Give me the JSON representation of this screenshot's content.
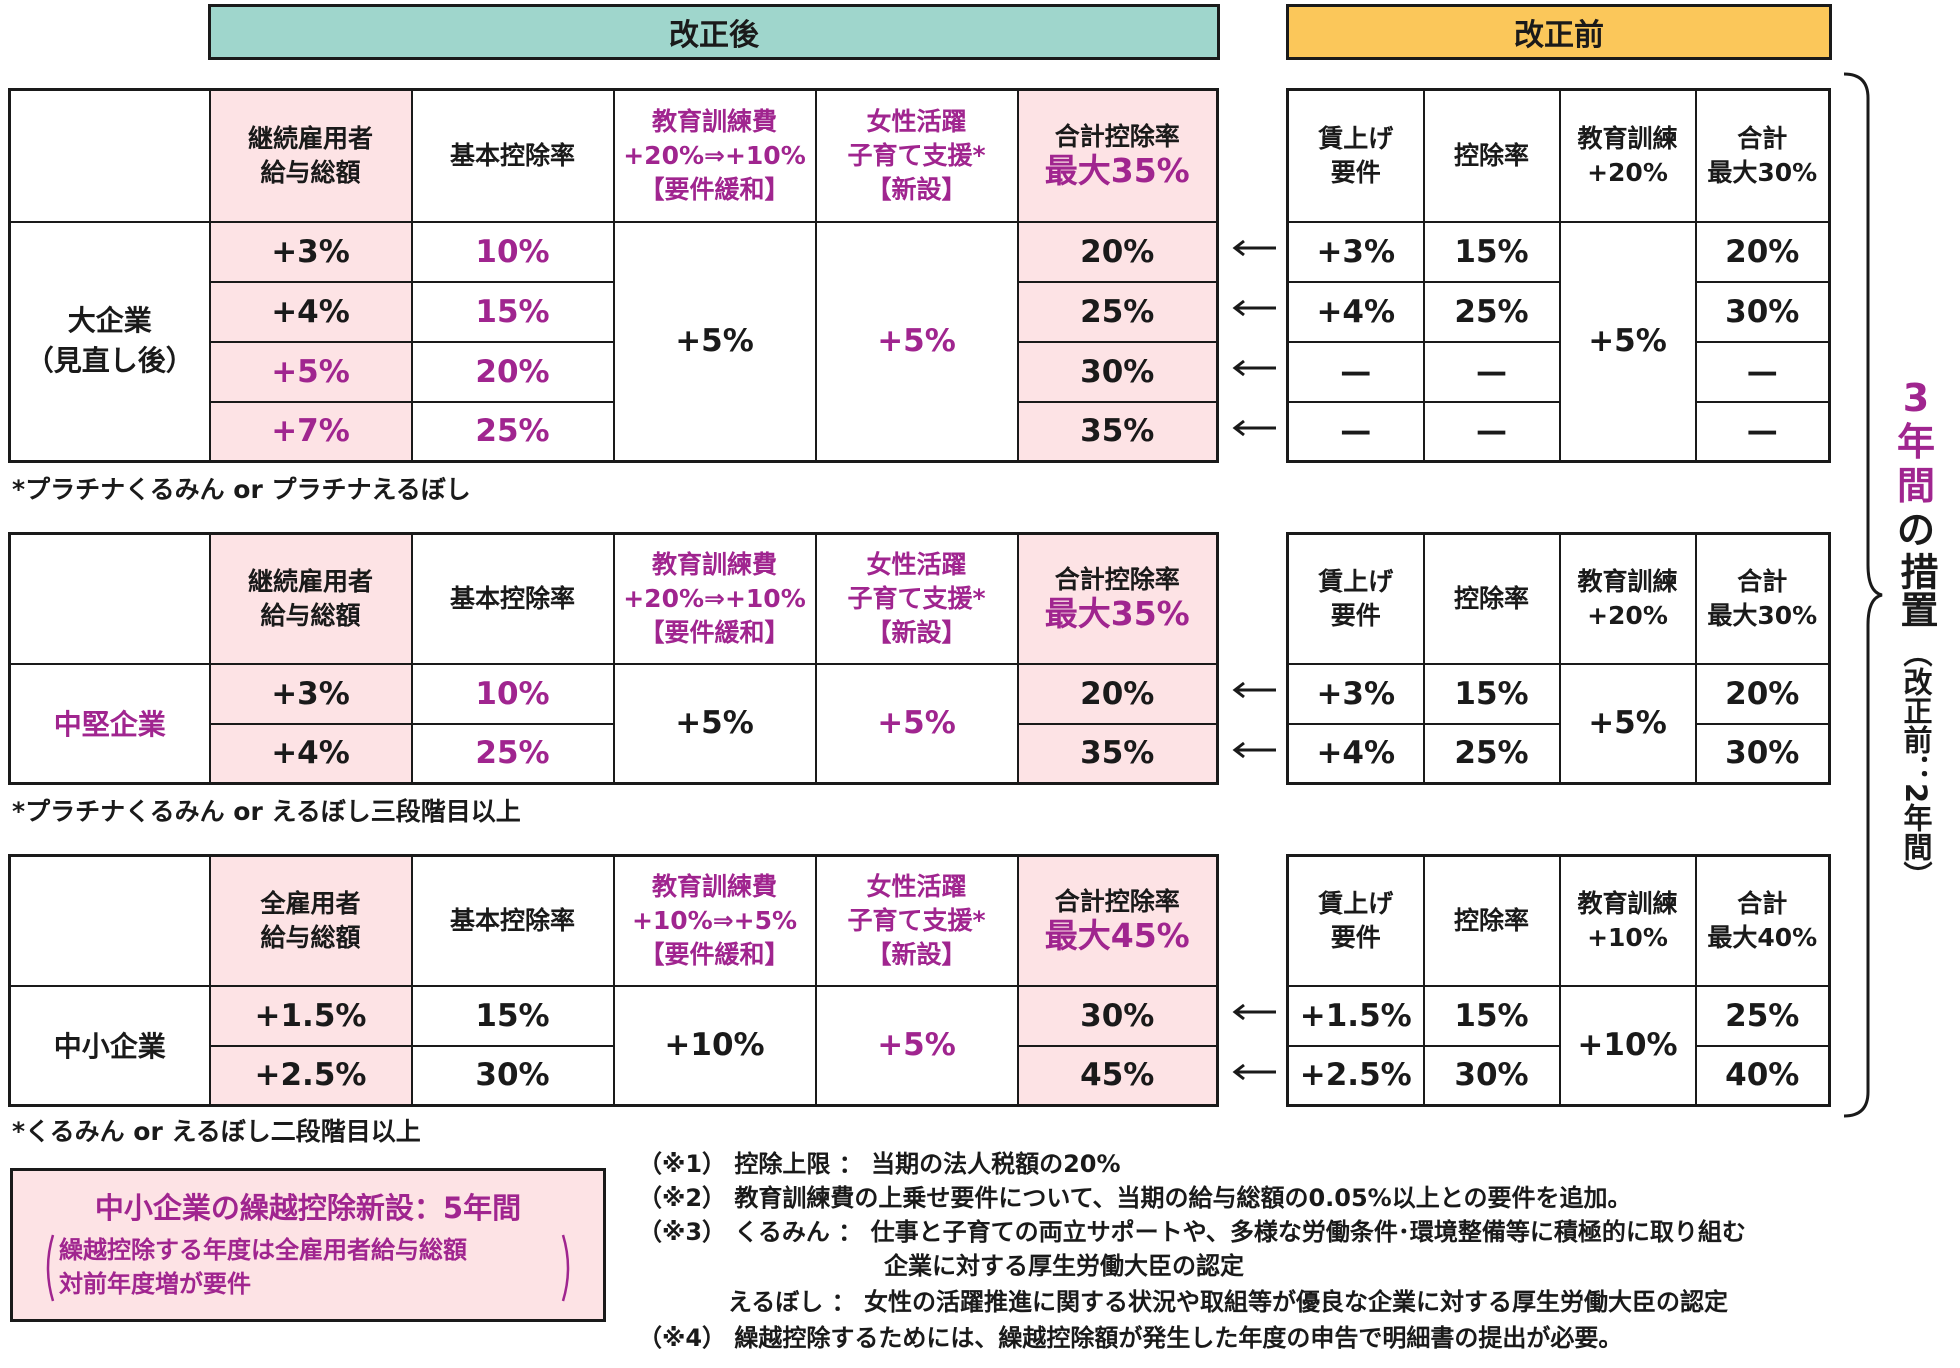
{
  "header": {
    "after": "改正後",
    "before": "改正前"
  },
  "colors": {
    "teal": "#9fd6cc",
    "yellow": "#fbc75a",
    "pink": "#fde3e5",
    "magenta": "#a0258f"
  },
  "side_label": {
    "years": "3",
    "nen": "年",
    "kan": "間",
    "no": "の",
    "sochi": "措置",
    "paren": "（改正前：2年間）"
  },
  "s1": {
    "h1": [
      "継続雇用者",
      "給与総額"
    ],
    "h2": "基本控除率",
    "h3": [
      "教育訓練費",
      "+20%⇒+10%",
      "【要件緩和】"
    ],
    "h4": [
      "女性活躍",
      "子育て支援*",
      "【新設】"
    ],
    "h5": [
      "合計控除率",
      "最大35%"
    ],
    "label": [
      "大企業",
      "（見直し後）"
    ],
    "rows": [
      {
        "wage": "+3%",
        "base": "10%",
        "total": "20%"
      },
      {
        "wage": "+4%",
        "base": "15%",
        "total": "25%"
      },
      {
        "wage": "+5%",
        "base": "20%",
        "total": "30%"
      },
      {
        "wage": "+7%",
        "base": "25%",
        "total": "35%"
      }
    ],
    "edu": "+5%",
    "women": "+5%",
    "note": "*プラチナくるみん or プラチナえるぼし"
  },
  "o1": {
    "h1": [
      "賃上げ",
      "要件"
    ],
    "h2": "控除率",
    "h3": [
      "教育訓練",
      "+20%"
    ],
    "h4": [
      "合計",
      "最大30%"
    ],
    "rows": [
      {
        "wage": "+3%",
        "rate": "15%",
        "total": "20%"
      },
      {
        "wage": "+4%",
        "rate": "25%",
        "total": "30%"
      },
      {
        "wage": "—",
        "rate": "—",
        "total": "—"
      },
      {
        "wage": "—",
        "rate": "—",
        "total": "—"
      }
    ],
    "edu": "+5%"
  },
  "s2": {
    "h1": [
      "継続雇用者",
      "給与総額"
    ],
    "h2": "基本控除率",
    "h3": [
      "教育訓練費",
      "+20%⇒+10%",
      "【要件緩和】"
    ],
    "h4": [
      "女性活躍",
      "子育て支援*",
      "【新設】"
    ],
    "h5": [
      "合計控除率",
      "最大35%"
    ],
    "label": "中堅企業",
    "rows": [
      {
        "wage": "+3%",
        "base": "10%",
        "total": "20%"
      },
      {
        "wage": "+4%",
        "base": "25%",
        "total": "35%"
      }
    ],
    "edu": "+5%",
    "women": "+5%",
    "note": "*プラチナくるみん or えるぼし三段階目以上"
  },
  "o2": {
    "h1": [
      "賃上げ",
      "要件"
    ],
    "h2": "控除率",
    "h3": [
      "教育訓練",
      "+20%"
    ],
    "h4": [
      "合計",
      "最大30%"
    ],
    "rows": [
      {
        "wage": "+3%",
        "rate": "15%",
        "total": "20%"
      },
      {
        "wage": "+4%",
        "rate": "25%",
        "total": "30%"
      }
    ],
    "edu": "+5%"
  },
  "s3": {
    "h1": [
      "全雇用者",
      "給与総額"
    ],
    "h2": "基本控除率",
    "h3": [
      "教育訓練費",
      "+10%⇒+5%",
      "【要件緩和】"
    ],
    "h4": [
      "女性活躍",
      "子育て支援*",
      "【新設】"
    ],
    "h5": [
      "合計控除率",
      "最大45%"
    ],
    "label": "中小企業",
    "rows": [
      {
        "wage": "+1.5%",
        "base": "15%",
        "total": "30%"
      },
      {
        "wage": "+2.5%",
        "base": "30%",
        "total": "45%"
      }
    ],
    "edu": "+10%",
    "women": "+5%",
    "note": "*くるみん or えるぼし二段階目以上"
  },
  "o3": {
    "h1": [
      "賃上げ",
      "要件"
    ],
    "h2": "控除率",
    "h3": [
      "教育訓練",
      "+10%"
    ],
    "h4": [
      "合計",
      "最大40%"
    ],
    "rows": [
      {
        "wage": "+1.5%",
        "rate": "15%",
        "total": "25%"
      },
      {
        "wage": "+2.5%",
        "rate": "30%",
        "total": "40%"
      }
    ],
    "edu": "+10%"
  },
  "carry": {
    "title": "中小企業の繰越控除新設：5年間",
    "line1": "繰越控除する年度は全雇用者給与総額",
    "line2": "対前年度増が要件"
  },
  "footnotes": [
    {
      "key": "（※1）",
      "text": "控除上限 ： 当期の法人税額の20%"
    },
    {
      "key": "（※2）",
      "text": "教育訓練費の上乗せ要件について、当期の給与総額の0.05%以上との要件を追加。"
    },
    {
      "key": "（※3）",
      "text": "くるみん ： 仕事と子育ての両立サポートや、多様な労働条件･環境整備等に積極的に取り組む"
    },
    {
      "key": "",
      "text": "企業に対する厚生労働大臣の認定"
    },
    {
      "key": "",
      "text": "えるぼし ： 女性の活躍推進に関する状況や取組等が優良な企業に対する厚生労働大臣の認定"
    },
    {
      "key": "（※4）",
      "text": "繰越控除するためには、繰越控除額が発生した年度の申告で明細書の提出が必要。"
    }
  ]
}
